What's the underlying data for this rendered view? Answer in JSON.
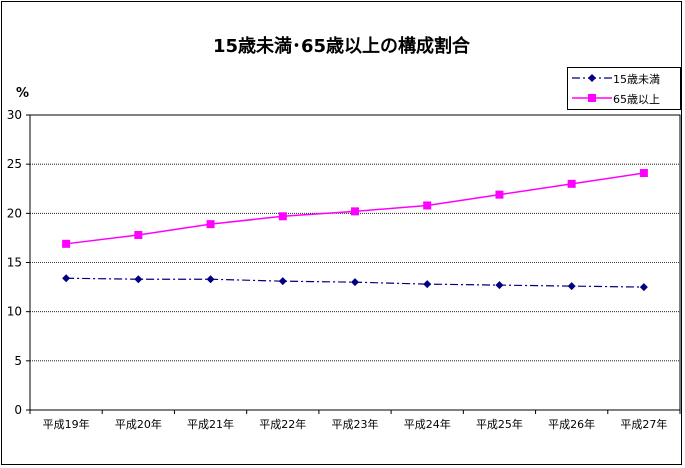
{
  "chart_data": {
    "type": "line",
    "title": "15歳未満･65歳以上の構成割合",
    "ylabel": "%",
    "xlabel": "",
    "ylim": [
      0,
      30
    ],
    "yticks": [
      0,
      5,
      10,
      15,
      20,
      25,
      30
    ],
    "grid": true,
    "legend_position": "top-right",
    "categories": [
      "平成19年",
      "平成20年",
      "平成21年",
      "平成22年",
      "平成23年",
      "平成24年",
      "平成25年",
      "平成26年",
      "平成27年"
    ],
    "series": [
      {
        "name": "15歳未満",
        "color": "#000080",
        "marker": "diamond",
        "line_style": "dash-dot",
        "values": [
          13.4,
          13.3,
          13.3,
          13.1,
          13.0,
          12.8,
          12.7,
          12.6,
          12.5
        ]
      },
      {
        "name": "65歳以上",
        "color": "#ff00ff",
        "marker": "square",
        "line_style": "solid",
        "values": [
          16.9,
          17.8,
          18.9,
          19.7,
          20.2,
          20.8,
          21.9,
          23.0,
          24.1
        ]
      }
    ]
  }
}
